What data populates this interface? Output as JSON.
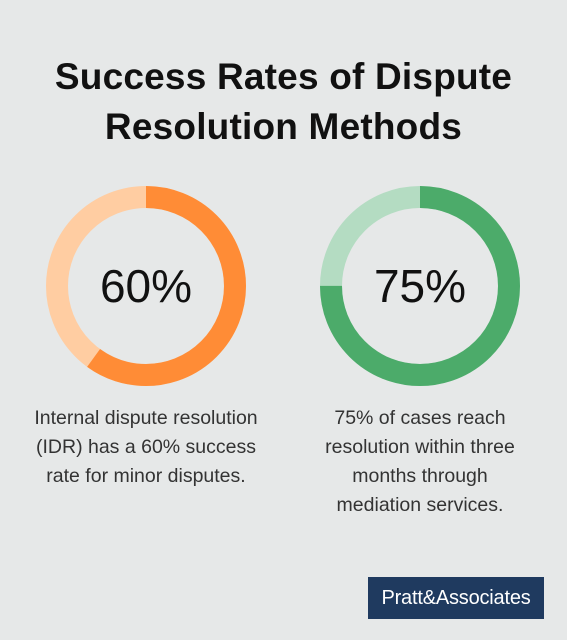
{
  "title_lines": [
    "Success Rates of Dispute",
    "Resolution Methods"
  ],
  "chart_data": [
    {
      "type": "pie",
      "variant": "donut",
      "value": 60,
      "max": 100,
      "center_label": "60%",
      "caption_lines": [
        "Internal dispute resolution",
        "(IDR) has a 60% success",
        "rate for minor disputes."
      ],
      "filled_color": "#ff8c36",
      "remainder_color": "#ffcda2"
    },
    {
      "type": "pie",
      "variant": "donut",
      "value": 75,
      "max": 100,
      "center_label": "75%",
      "caption_lines": [
        "75% of cases reach",
        "resolution within three",
        "months through",
        "mediation services."
      ],
      "filled_color": "#4cab6a",
      "remainder_color": "#b4dcc2"
    }
  ],
  "brand": {
    "name": "Pratt&Associates"
  }
}
